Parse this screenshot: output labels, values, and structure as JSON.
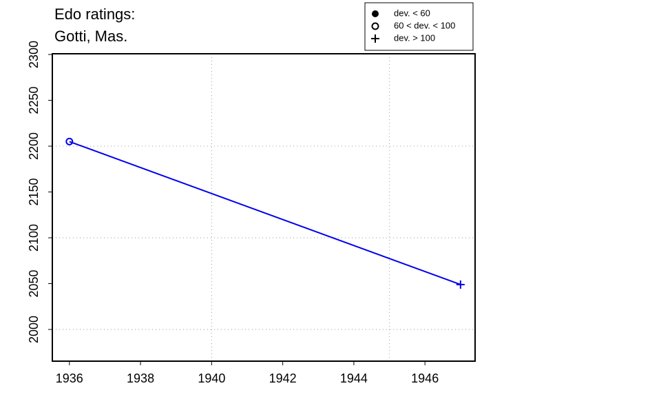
{
  "chart_data": {
    "type": "line",
    "title": [
      "Edo ratings:",
      "Gotti, Mas."
    ],
    "x": [
      1936,
      1947
    ],
    "series": [
      {
        "color": "#0000ee",
        "values": [
          2205,
          2049
        ],
        "markers": [
          "circle",
          "plus"
        ]
      }
    ],
    "xlim": [
      1935.52,
      1947.41
    ],
    "ylim": [
      1965.4,
      2300.8
    ],
    "xticks": [
      1936,
      1938,
      1940,
      1942,
      1944,
      1946
    ],
    "yticks": [
      2000,
      2050,
      2100,
      2150,
      2200,
      2250,
      2300
    ],
    "xgrid": [
      1940,
      1945
    ],
    "ygrid": [
      2000,
      2100,
      2200
    ],
    "legend": {
      "position": "top-right",
      "items": [
        {
          "label": "dev. < 60",
          "marker": "dot"
        },
        {
          "label": "60 < dev. < 100",
          "marker": "circle"
        },
        {
          "label": "dev. > 100",
          "marker": "plus"
        }
      ]
    }
  }
}
